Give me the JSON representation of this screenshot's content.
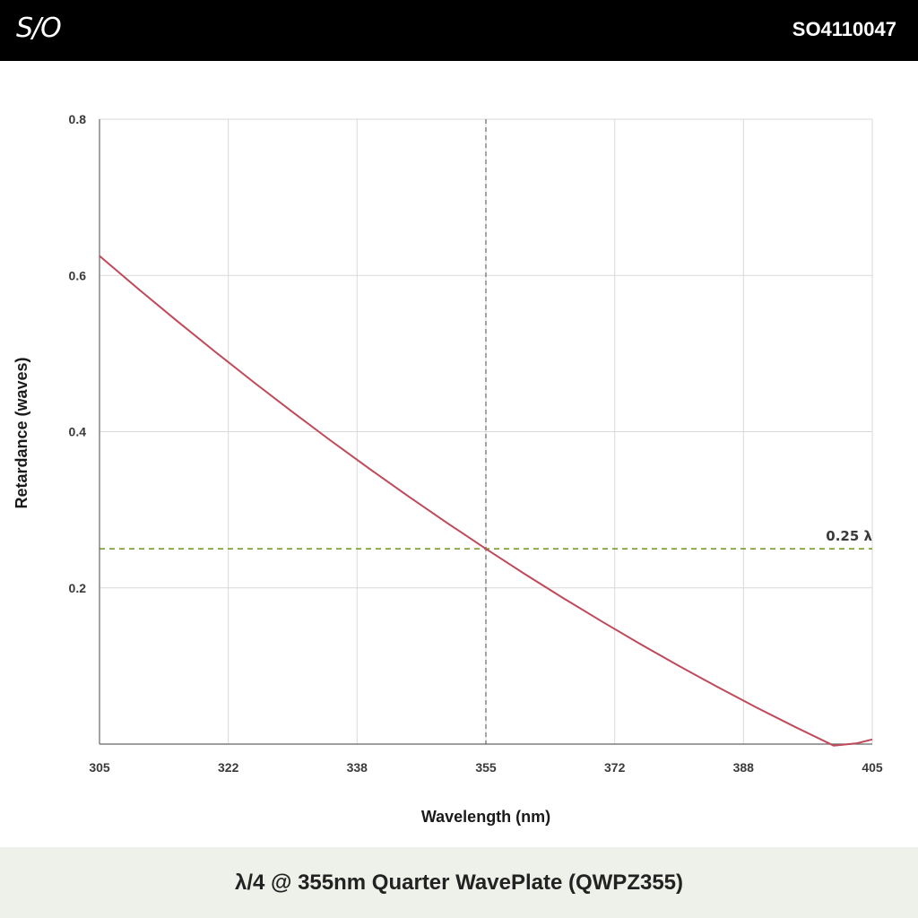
{
  "header": {
    "logo": "S/O",
    "part_number": "SO4110047"
  },
  "footer": {
    "title": "λ/4 @ 355nm Quarter WavePlate (QWPZ355)"
  },
  "colors": {
    "curve": "#c0495a",
    "target_line": "#7a9a2a",
    "grid": "#d9d9d9",
    "marker_line": "#666666"
  },
  "chart_data": {
    "type": "line",
    "xlabel": "Wavelength (nm)",
    "ylabel": "Retardance (waves)",
    "xlim": [
      305,
      405
    ],
    "ylim": [
      0,
      0.8
    ],
    "x_ticks": [
      {
        "value": 305,
        "label": "305"
      },
      {
        "value": 321.67,
        "label": "322"
      },
      {
        "value": 338.33,
        "label": "338"
      },
      {
        "value": 355,
        "label": "355"
      },
      {
        "value": 371.67,
        "label": "372"
      },
      {
        "value": 388.33,
        "label": "388"
      },
      {
        "value": 405,
        "label": "405"
      }
    ],
    "y_ticks": [
      {
        "value": 0.2,
        "label": "0.2"
      },
      {
        "value": 0.4,
        "label": "0.4"
      },
      {
        "value": 0.6,
        "label": "0.6"
      },
      {
        "value": 0.8,
        "label": "0.8"
      }
    ],
    "grid": true,
    "series": [
      {
        "x": [
          305,
          310,
          315,
          320,
          325,
          330,
          335,
          340,
          345,
          350,
          355,
          360,
          365,
          370,
          375,
          380,
          385,
          390,
          395,
          400,
          402,
          403,
          405
        ],
        "y": [
          0.625,
          0.583,
          0.542,
          0.502,
          0.463,
          0.425,
          0.388,
          0.352,
          0.317,
          0.283,
          0.25,
          0.218,
          0.187,
          0.157,
          0.128,
          0.1,
          0.073,
          0.047,
          0.022,
          -0.002,
          0.0,
          0.001,
          0.006
        ]
      }
    ],
    "reference_lines": [
      {
        "orientation": "horizontal",
        "value": 0.25,
        "label": "0.25 λ",
        "style": "dashed"
      },
      {
        "orientation": "vertical",
        "value": 355,
        "label": "",
        "style": "dashed"
      }
    ]
  }
}
